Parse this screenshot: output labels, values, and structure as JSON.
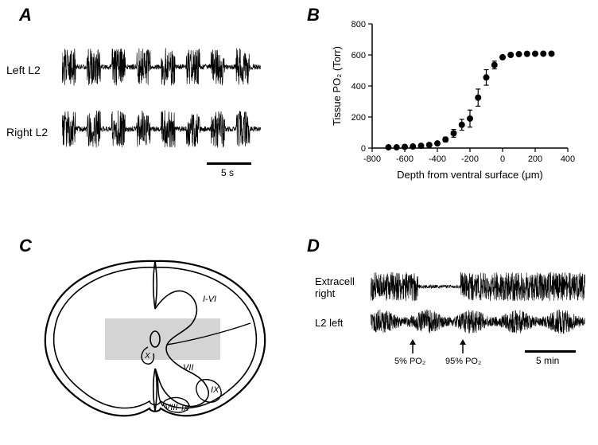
{
  "panelA": {
    "label": "A",
    "leftLabel": "Left L2",
    "rightLabel": "Right L2",
    "scalebar_label": "5 s",
    "burst_count": 8
  },
  "panelB": {
    "label": "B",
    "xlabel": "Depth from ventral surface (μm)",
    "ylabel": "Tissue PO₂ (Torr)",
    "xlim": [
      -800,
      400
    ],
    "ylim": [
      0,
      800
    ],
    "xticks": [
      -800,
      -600,
      -400,
      -200,
      0,
      200,
      400
    ],
    "yticks": [
      0,
      200,
      400,
      600,
      800
    ],
    "data_x": [
      -700,
      -650,
      -600,
      -550,
      -500,
      -450,
      -400,
      -350,
      -300,
      -250,
      -200,
      -150,
      -100,
      -50,
      0,
      50,
      100,
      150,
      200,
      250,
      300
    ],
    "data_y": [
      5,
      5,
      8,
      10,
      15,
      20,
      30,
      55,
      95,
      150,
      190,
      325,
      455,
      535,
      585,
      600,
      605,
      607,
      608,
      608,
      608
    ],
    "error_y": [
      0,
      0,
      0,
      0,
      0,
      5,
      10,
      15,
      25,
      35,
      55,
      55,
      50,
      25,
      10,
      0,
      0,
      0,
      0,
      0,
      0
    ],
    "axis_color": "#000000",
    "marker_color": "#000000",
    "marker_size": 4,
    "background": "#ffffff"
  },
  "panelC": {
    "label": "C",
    "regions": [
      "I-VI",
      "VII",
      "VIII",
      "IX",
      "IX",
      "X"
    ],
    "outline_color": "#000000",
    "shaded_color": "#cccccc"
  },
  "panelD": {
    "label": "D",
    "topLabel": "Extracell right",
    "bottomLabel": "L2 left",
    "arrow1_label": "5% PO₂",
    "arrow2_label": "95% PO₂",
    "scalebar_label": "5 min"
  }
}
